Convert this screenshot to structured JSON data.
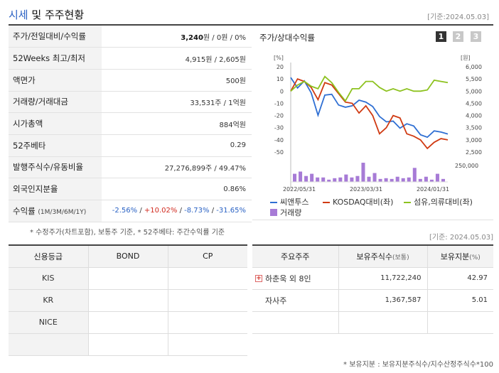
{
  "header": {
    "title_main": "시세",
    "title_rest": " 및 주주현황",
    "date": "[기준:2024.05.03]"
  },
  "quote": {
    "rows": [
      {
        "label": "주가/전일대비/수익률",
        "price": "3,240",
        "rest": "원 / 0원 / 0%"
      },
      {
        "label": "52Weeks 최고/최저",
        "value": "4,915원 / 2,605원"
      },
      {
        "label": "액면가",
        "value": "500원"
      },
      {
        "label": "거래량/거래대금",
        "value": "33,531주 / 1억원"
      },
      {
        "label": "시가총액",
        "value": "884억원"
      },
      {
        "label": "52주베타",
        "value": "0.29"
      },
      {
        "label": "발행주식수/유동비율",
        "value": "27,276,899주 / 49.47%"
      },
      {
        "label": "외국인지분율",
        "value": "0.86%"
      }
    ],
    "returns": {
      "label": "수익률",
      "sub": "(1M/3M/6M/1Y)",
      "values": [
        "-2.56%",
        "+10.02%",
        "-8.73%",
        "-31.65%"
      ]
    }
  },
  "chart": {
    "title": "주가/상대수익률",
    "pages": [
      "1",
      "2",
      "3"
    ],
    "legend": {
      "stock": "씨앤투스",
      "kosdaq": "KOSDAQ대비(좌)",
      "sector": "섬유,의류대비(좌)",
      "volume": "거래량"
    },
    "colors": {
      "stock": "#2f6fd3",
      "kosdaq": "#d03a12",
      "sector": "#8dc21f",
      "volume": "#a77bd6"
    }
  },
  "chart_data": {
    "type": "line",
    "left_unit": "[%]",
    "right_unit": "[원]",
    "left_ticks": [
      20,
      10,
      0,
      -10,
      -20,
      -30,
      -40,
      -50
    ],
    "right_ticks": [
      "6,000",
      "5,500",
      "5,000",
      "4,500",
      "4,000",
      "3,500",
      "3,000",
      "2,500"
    ],
    "volume_tick": "250,000",
    "x_labels": [
      "2022/05/31",
      "2023/03/31",
      "2024/01/31"
    ],
    "ylim_left": [
      -50,
      20
    ],
    "ylim_right": [
      2500,
      6000
    ],
    "series": [
      {
        "name": "씨앤투스",
        "axis": "right",
        "values": [
          5560,
          5130,
          5420,
          4930,
          4010,
          4840,
          4870,
          4430,
          4340,
          4400,
          4630,
          4550,
          4370,
          3960,
          3740,
          3770,
          3480,
          3660,
          3570,
          3210,
          3110,
          3370,
          3320,
          3240
        ]
      },
      {
        "name": "KOSDAQ대비(좌)",
        "values": [
          0,
          10,
          8,
          3,
          -7,
          7,
          5,
          -2,
          -9,
          -10,
          -18,
          -12,
          -20,
          -35,
          -30,
          -20,
          -22,
          -35,
          -37,
          -40,
          -47,
          -42,
          -39,
          -40
        ]
      },
      {
        "name": "섬유,의류대비(좌)",
        "values": [
          0,
          5,
          8,
          4,
          2,
          12,
          7,
          -1,
          -8,
          2,
          2,
          8,
          8,
          3,
          0,
          2,
          0,
          2,
          0,
          0,
          1,
          9,
          8,
          7
        ]
      }
    ],
    "volume": [
      110000,
      140000,
      80000,
      110000,
      60000,
      60000,
      30000,
      50000,
      60000,
      100000,
      60000,
      80000,
      260000,
      70000,
      120000,
      40000,
      50000,
      40000,
      70000,
      50000,
      60000,
      190000,
      40000,
      70000,
      30000,
      110000,
      40000
    ]
  },
  "notes": {
    "quote": "* 수정주가(차트포함), 보통주 기준, * 52주베타: 주간수익률 기준",
    "date": "[기준: 2024.05.03]",
    "share": "* 보유지분 : 보유지분주식수/지수산정주식수*100"
  },
  "credit": {
    "headers": [
      "신용등급",
      "BOND",
      "CP"
    ],
    "rows": [
      [
        "KIS",
        "",
        ""
      ],
      [
        "KR",
        "",
        ""
      ],
      [
        "NICE",
        "",
        ""
      ],
      [
        "",
        "",
        ""
      ]
    ]
  },
  "shareholders": {
    "headers": {
      "name": "주요주주",
      "shares": "보유주식수",
      "shares_unit": "(보통)",
      "ratio": "보유지분",
      "ratio_unit": "(%)"
    },
    "rows": [
      {
        "name": "하춘욱 외 8인",
        "shares": "11,722,240",
        "ratio": "42.97",
        "expand": "+"
      },
      {
        "name": "자사주",
        "shares": "1,367,587",
        "ratio": "5.01"
      },
      {
        "name": "",
        "shares": "",
        "ratio": ""
      }
    ]
  }
}
